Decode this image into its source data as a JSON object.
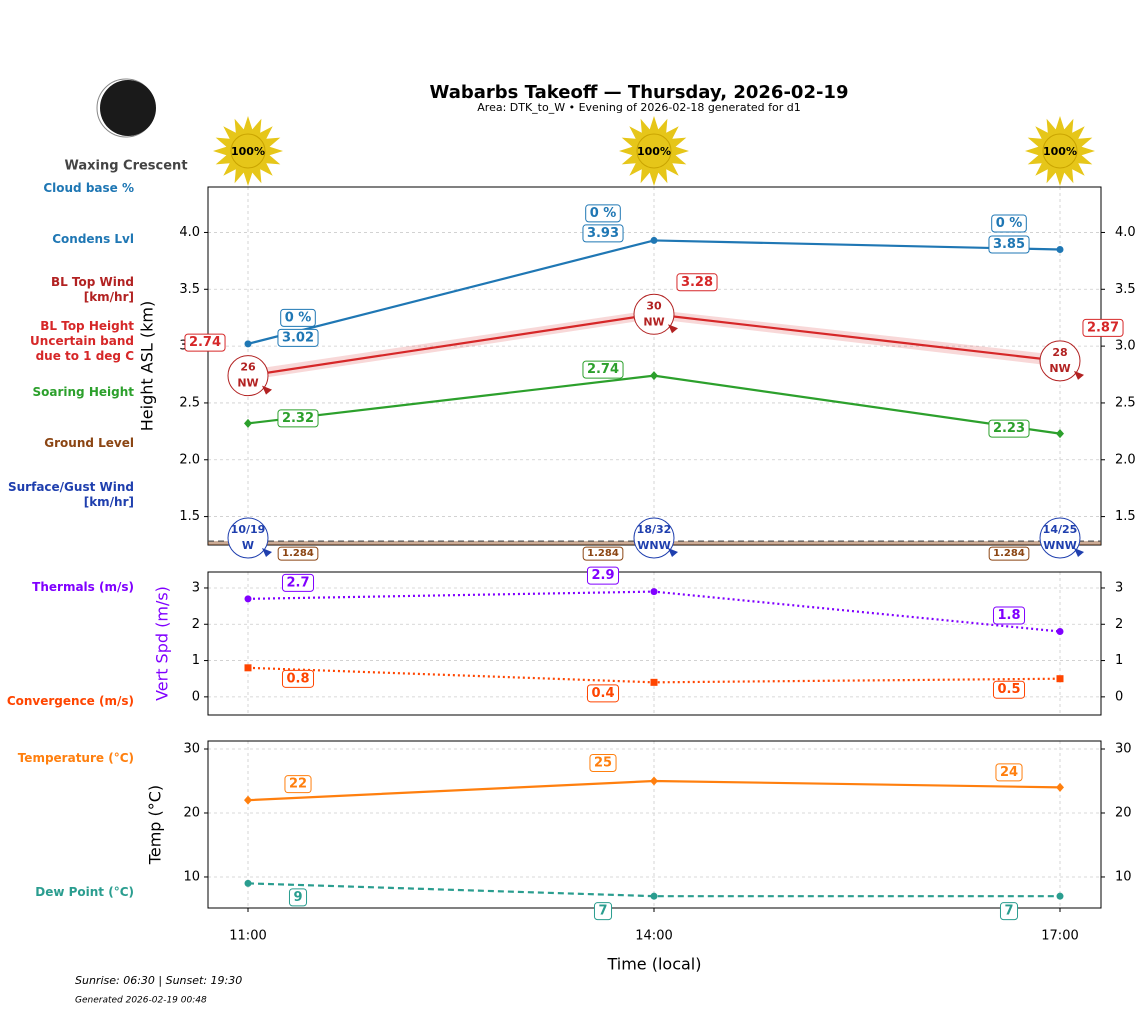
{
  "title": "Wabarbs Takeoff — Thursday, 2026-02-19",
  "subtitle": "Area: DTK_to_W • Evening of 2026-02-18 generated for d1",
  "moon": "Waxing Crescent",
  "footer": {
    "sun_times": "Sunrise: 06:30 | Sunset: 19:30",
    "generated": "Generated 2026-02-19 00:48"
  },
  "chart_data": [
    {
      "type": "line",
      "ylabel": "Height ASL (km)",
      "ylim": [
        1.25,
        4.4
      ],
      "yticks": [
        1.5,
        {
          "value": 2,
          "label": "2.0"
        },
        2.5,
        {
          "value": 3,
          "label": "3.0"
        },
        3.5,
        {
          "value": 4,
          "label": "4.0"
        }
      ],
      "grid": true,
      "sunshine": {
        "values": [
          100,
          100,
          100
        ],
        "value_labels": [
          "100%",
          "100%",
          "100%"
        ],
        "color": "#e6c619"
      },
      "cloud_base": {
        "name": "Cloud base %",
        "color": "#1f77b4",
        "values": [
          0,
          0,
          0
        ],
        "value_labels": [
          "0 %",
          "0 %",
          "0 %"
        ]
      },
      "series": [
        {
          "name": "Condens Lvl",
          "color": "#1f77b4",
          "values": [
            3.02,
            3.93,
            3.85
          ],
          "marker": "circle",
          "dash": "solid"
        },
        {
          "name": "BL Top Height\nUncertain band\ndue to 1 deg C",
          "color": "#d62728",
          "values": [
            2.74,
            3.28,
            2.87
          ],
          "band_low": [
            2.7,
            3.24,
            2.82
          ],
          "band_high": [
            2.79,
            3.32,
            2.92
          ],
          "marker": "none",
          "dash": "solid"
        },
        {
          "name": "Soaring Height",
          "color": "#2ca02c",
          "values": [
            2.32,
            2.74,
            2.23
          ],
          "marker": "diamond",
          "dash": "solid"
        }
      ],
      "bl_top_wind": {
        "name": "BL Top Wind\n[km/hr]",
        "color": "#b22222",
        "values": [
          26,
          30,
          28
        ],
        "directions": [
          "NW",
          "NW",
          "NW"
        ]
      },
      "ground_level": {
        "name": "Ground Level",
        "color": "#8b4513",
        "values": [
          1.284,
          1.284,
          1.284
        ]
      },
      "surface_wind": {
        "name": "Surface/Gust Wind\n[km/hr]",
        "color": "#1f3fae",
        "values": [
          10,
          18,
          14
        ],
        "gust": [
          19,
          32,
          25
        ],
        "value_labels": [
          "10/19",
          "18/32",
          "14/25"
        ],
        "directions": [
          "W",
          "WNW",
          "WNW"
        ]
      }
    },
    {
      "type": "line",
      "ylabel": "Vert Spd (m/s)",
      "ylabel_color": "#8000ff",
      "ylim": [
        -0.5,
        3.44
      ],
      "yticks": [
        0,
        1,
        2,
        3
      ],
      "grid": true,
      "series": [
        {
          "name": "Thermals (m/s)",
          "color": "#8000ff",
          "values": [
            2.7,
            2.9,
            1.8
          ],
          "marker": "circle",
          "dash": "dotted"
        },
        {
          "name": "Convergence (m/s)",
          "color": "#ff4500",
          "values": [
            0.8,
            0.4,
            0.5
          ],
          "marker": "square",
          "dash": "dotted"
        }
      ]
    },
    {
      "type": "line",
      "ylabel": "Temp (°C)",
      "ylim": [
        5.15,
        31.25
      ],
      "yticks": [
        10,
        20,
        30
      ],
      "grid": true,
      "xlabel": "Time (local)",
      "categories": [
        "11:00",
        "14:00",
        "17:00"
      ],
      "series": [
        {
          "name": "Temperature (°C)",
          "color": "#ff7f0e",
          "values": [
            22,
            25,
            24
          ],
          "marker": "diamond",
          "dash": "solid"
        },
        {
          "name": "Dew Point (°C)",
          "color": "#2a9d8f",
          "values": [
            9,
            7,
            7
          ],
          "marker": "circle",
          "dash": "dashed"
        }
      ]
    }
  ]
}
